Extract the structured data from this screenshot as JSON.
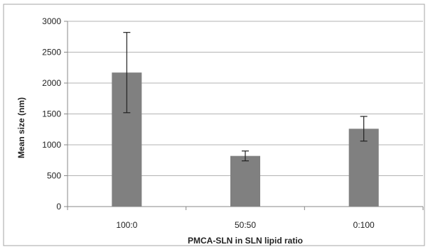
{
  "chart_data": {
    "type": "bar",
    "title": "",
    "xlabel": "PMCA-SLN in SLN lipid ratio",
    "ylabel": "Mean size (nm)",
    "categories": [
      "100:0",
      "50:50",
      "0:100"
    ],
    "values": [
      2170,
      820,
      1260
    ],
    "error_bars": [
      {
        "low": 1520,
        "high": 2820
      },
      {
        "low": 740,
        "high": 900
      },
      {
        "low": 1060,
        "high": 1460
      }
    ],
    "ylim": [
      0,
      3000
    ],
    "yticks": [
      0,
      500,
      1000,
      1500,
      2000,
      2500,
      3000
    ],
    "grid": true,
    "legend": "none",
    "colors": {
      "bar": "#808080",
      "grid": "#b3b3b3",
      "axis": "#888888",
      "error_bar": "#222222",
      "frame": "#a6a6a6"
    }
  }
}
